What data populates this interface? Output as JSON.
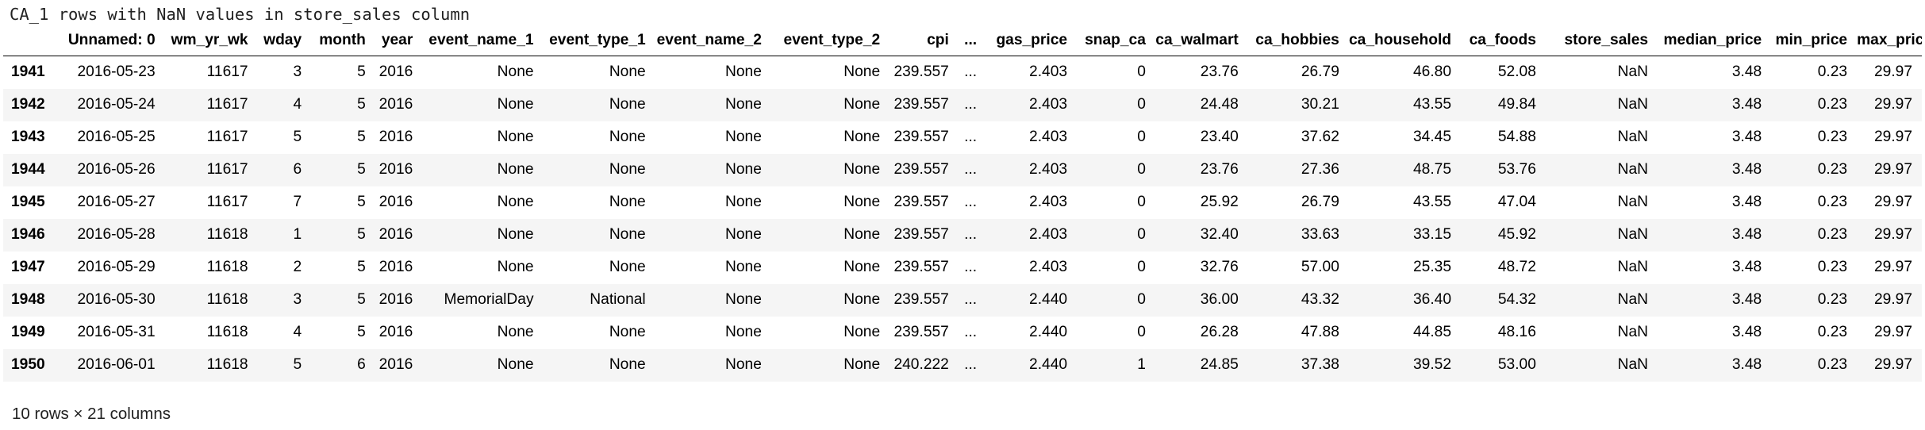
{
  "title": "CA_1 rows with NaN values in store_sales column",
  "columns": [
    "",
    "Unnamed: 0",
    "wm_yr_wk",
    "wday",
    "month",
    "year",
    "event_name_1",
    "event_type_1",
    "event_name_2",
    "event_type_2",
    "cpi",
    "...",
    "gas_price",
    "snap_ca",
    "ca_walmart",
    "ca_hobbies",
    "ca_household",
    "ca_foods",
    "store_sales",
    "median_price",
    "min_price",
    "max_price"
  ],
  "rows": [
    [
      "1941",
      "2016-05-23",
      "11617",
      "3",
      "5",
      "2016",
      "None",
      "None",
      "None",
      "None",
      "239.557",
      "...",
      "2.403",
      "0",
      "23.76",
      "26.79",
      "46.80",
      "52.08",
      "NaN",
      "3.48",
      "0.23",
      "29.97"
    ],
    [
      "1942",
      "2016-05-24",
      "11617",
      "4",
      "5",
      "2016",
      "None",
      "None",
      "None",
      "None",
      "239.557",
      "...",
      "2.403",
      "0",
      "24.48",
      "30.21",
      "43.55",
      "49.84",
      "NaN",
      "3.48",
      "0.23",
      "29.97"
    ],
    [
      "1943",
      "2016-05-25",
      "11617",
      "5",
      "5",
      "2016",
      "None",
      "None",
      "None",
      "None",
      "239.557",
      "...",
      "2.403",
      "0",
      "23.40",
      "37.62",
      "34.45",
      "54.88",
      "NaN",
      "3.48",
      "0.23",
      "29.97"
    ],
    [
      "1944",
      "2016-05-26",
      "11617",
      "6",
      "5",
      "2016",
      "None",
      "None",
      "None",
      "None",
      "239.557",
      "...",
      "2.403",
      "0",
      "23.76",
      "27.36",
      "48.75",
      "53.76",
      "NaN",
      "3.48",
      "0.23",
      "29.97"
    ],
    [
      "1945",
      "2016-05-27",
      "11617",
      "7",
      "5",
      "2016",
      "None",
      "None",
      "None",
      "None",
      "239.557",
      "...",
      "2.403",
      "0",
      "25.92",
      "26.79",
      "43.55",
      "47.04",
      "NaN",
      "3.48",
      "0.23",
      "29.97"
    ],
    [
      "1946",
      "2016-05-28",
      "11618",
      "1",
      "5",
      "2016",
      "None",
      "None",
      "None",
      "None",
      "239.557",
      "...",
      "2.403",
      "0",
      "32.40",
      "33.63",
      "33.15",
      "45.92",
      "NaN",
      "3.48",
      "0.23",
      "29.97"
    ],
    [
      "1947",
      "2016-05-29",
      "11618",
      "2",
      "5",
      "2016",
      "None",
      "None",
      "None",
      "None",
      "239.557",
      "...",
      "2.403",
      "0",
      "32.76",
      "57.00",
      "25.35",
      "48.72",
      "NaN",
      "3.48",
      "0.23",
      "29.97"
    ],
    [
      "1948",
      "2016-05-30",
      "11618",
      "3",
      "5",
      "2016",
      "MemorialDay",
      "National",
      "None",
      "None",
      "239.557",
      "...",
      "2.440",
      "0",
      "36.00",
      "43.32",
      "36.40",
      "54.32",
      "NaN",
      "3.48",
      "0.23",
      "29.97"
    ],
    [
      "1949",
      "2016-05-31",
      "11618",
      "4",
      "5",
      "2016",
      "None",
      "None",
      "None",
      "None",
      "239.557",
      "...",
      "2.440",
      "0",
      "26.28",
      "47.88",
      "44.85",
      "48.16",
      "NaN",
      "3.48",
      "0.23",
      "29.97"
    ],
    [
      "1950",
      "2016-06-01",
      "11618",
      "5",
      "6",
      "2016",
      "None",
      "None",
      "None",
      "None",
      "240.222",
      "...",
      "2.440",
      "1",
      "24.85",
      "37.38",
      "39.52",
      "53.00",
      "NaN",
      "3.48",
      "0.23",
      "29.97"
    ]
  ],
  "footer": "10 rows × 21 columns",
  "colors": {
    "stripe": "#f5f5f5",
    "header_rule": "#000000",
    "text": "#000000"
  }
}
